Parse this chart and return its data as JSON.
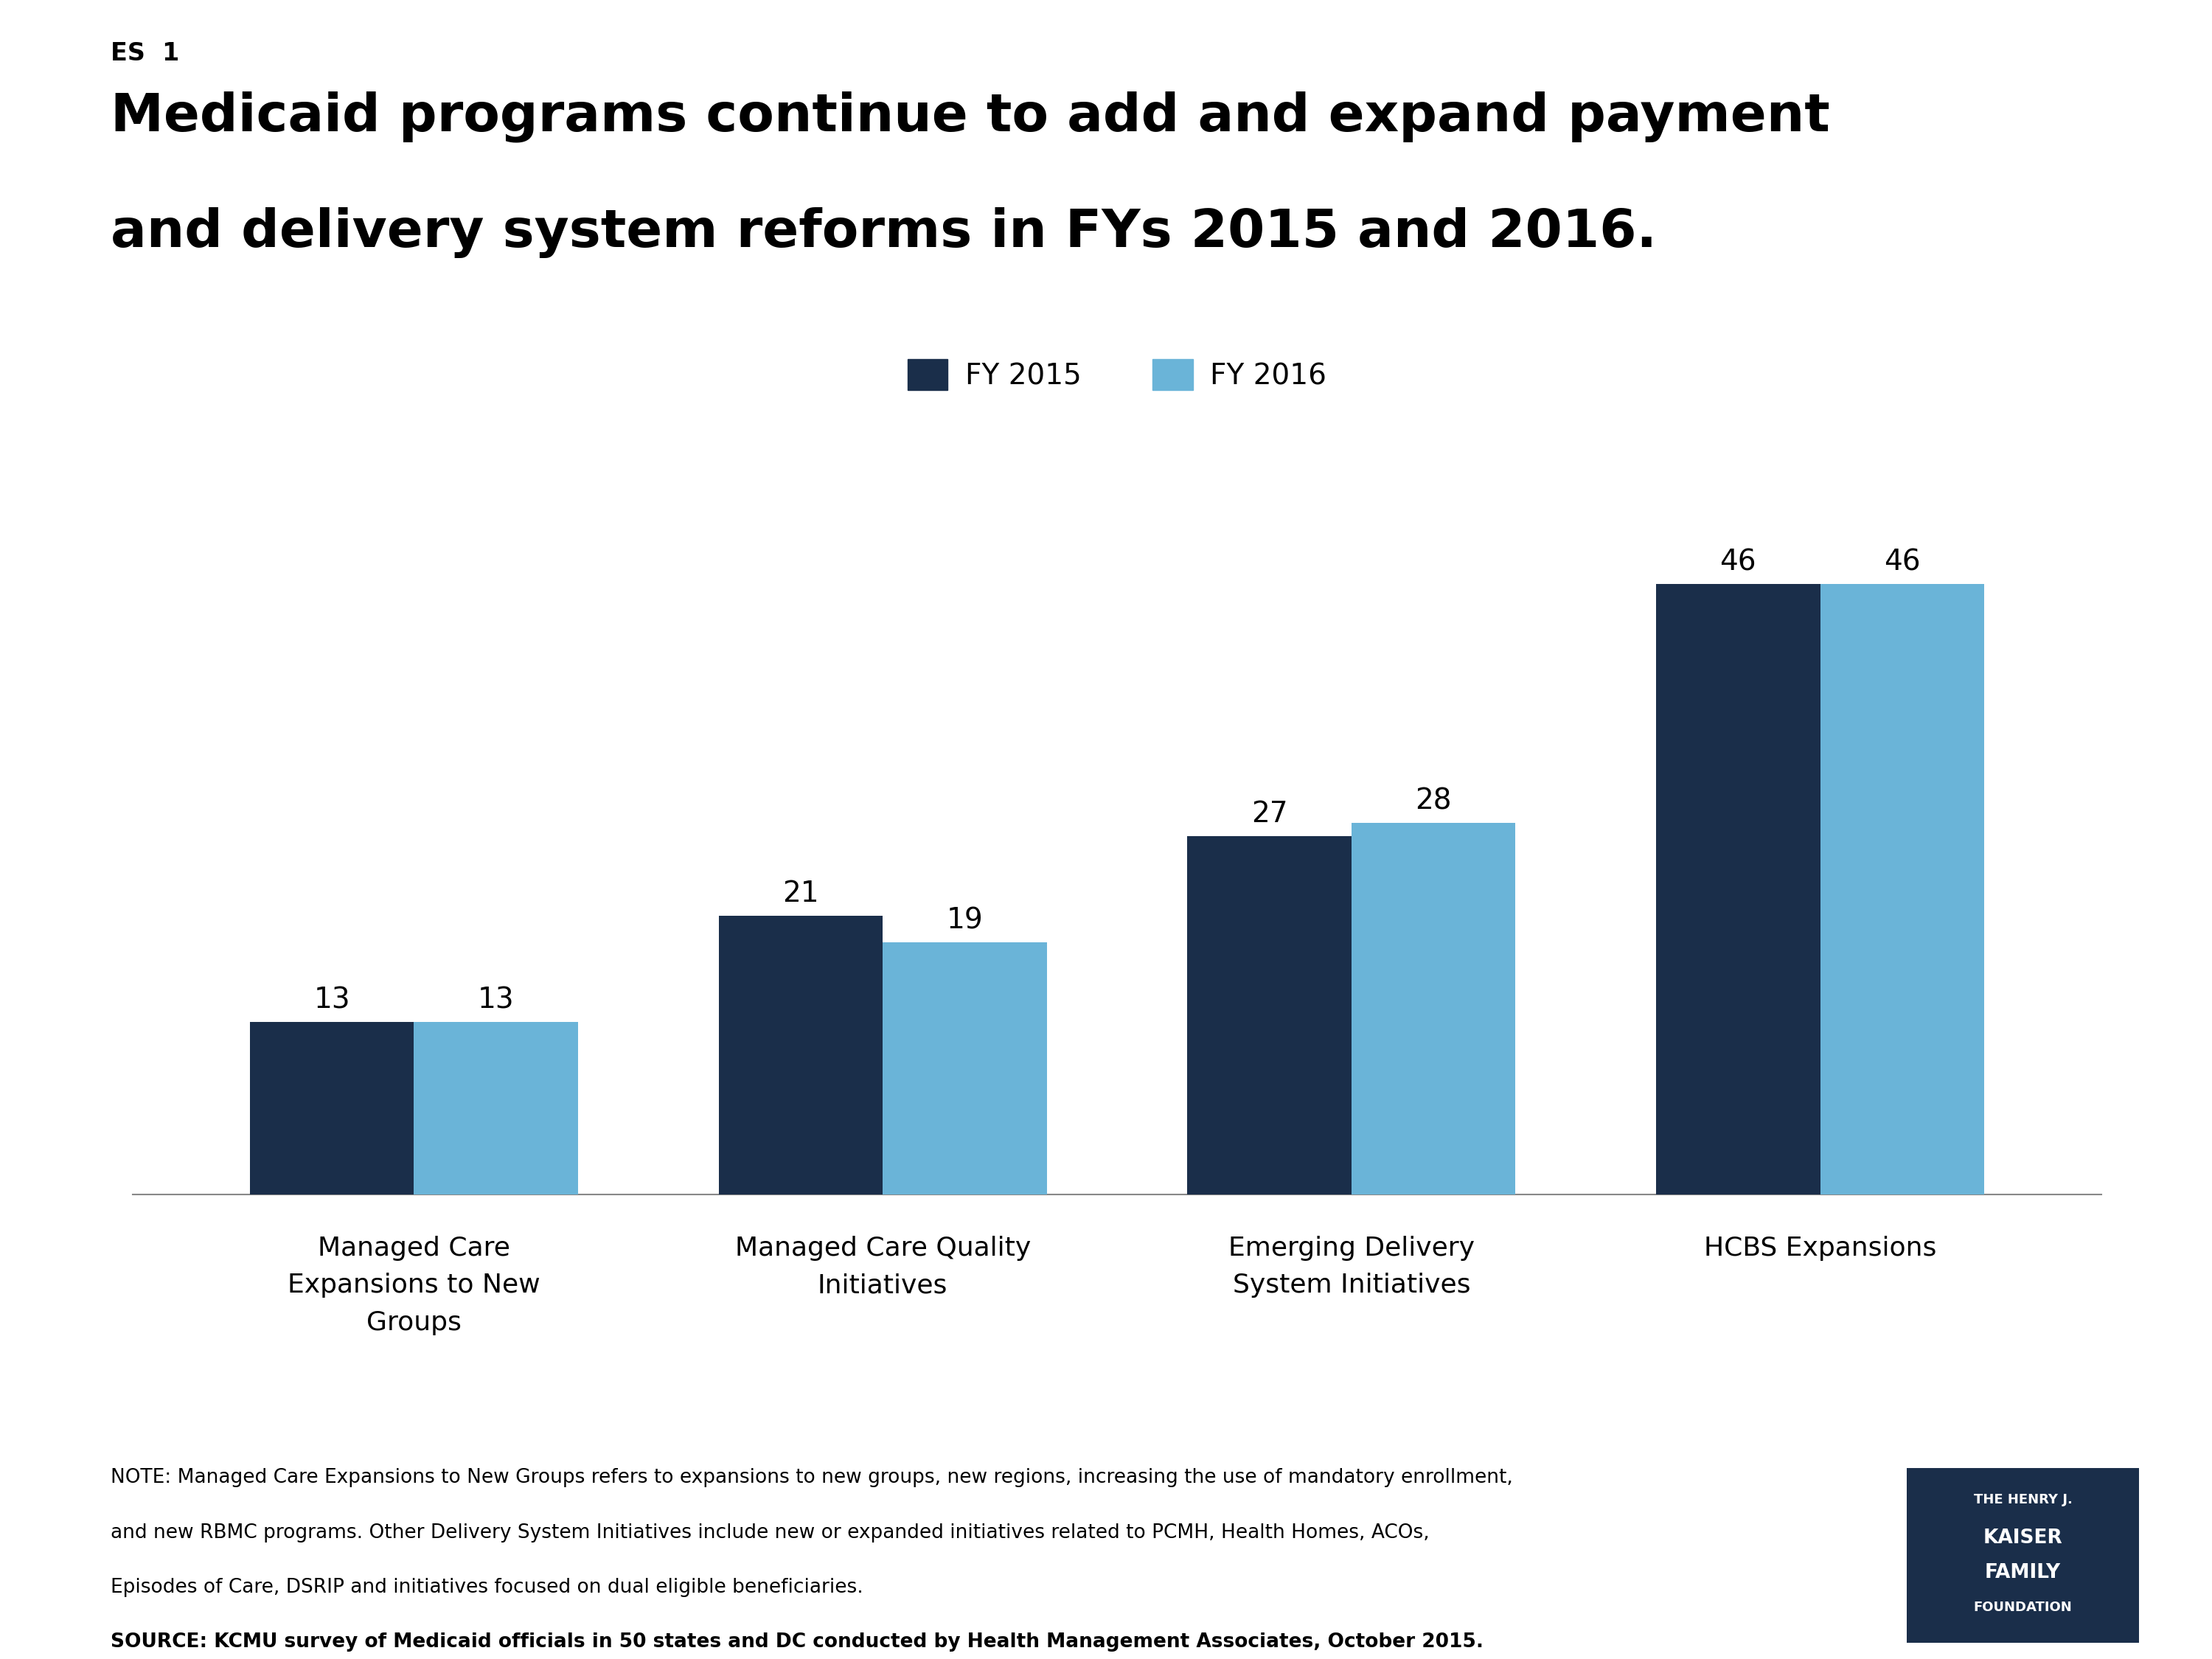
{
  "label_es": "ES  1",
  "title_line1": "Medicaid programs continue to add and expand payment",
  "title_line2": "and delivery system reforms in FYs 2015 and 2016.",
  "legend_labels": [
    "FY 2015",
    "FY 2016"
  ],
  "legend_colors": [
    "#1a2e4a",
    "#6ab4d8"
  ],
  "categories": [
    "Managed Care\nExpansions to New\nGroups",
    "Managed Care Quality\nInitiatives",
    "Emerging Delivery\nSystem Initiatives",
    "HCBS Expansions"
  ],
  "values_2015": [
    13,
    21,
    27,
    46
  ],
  "values_2016": [
    13,
    19,
    28,
    46
  ],
  "bar_color_2015": "#1a2e4a",
  "bar_color_2016": "#6ab4d8",
  "bar_width": 0.35,
  "ylim": [
    0,
    55
  ],
  "note_line1": "NOTE: Managed Care Expansions to New Groups refers to expansions to new groups, new regions, increasing the use of mandatory enrollment,",
  "note_line2": "and new RBMC programs. Other Delivery System Initiatives include new or expanded initiatives related to PCMH, Health Homes, ACOs,",
  "note_line3": "Episodes of Care, DSRIP and initiatives focused on dual eligible beneficiaries.",
  "source_line": "SOURCE: KCMU survey of Medicaid officials in 50 states and DC conducted by Health Management Associates, October 2015.",
  "background_color": "#ffffff",
  "logo_color": "#1a2e4a",
  "logo_lines": [
    "THE HENRY J.",
    "KAISER",
    "FAMILY",
    "FOUNDATION"
  ]
}
